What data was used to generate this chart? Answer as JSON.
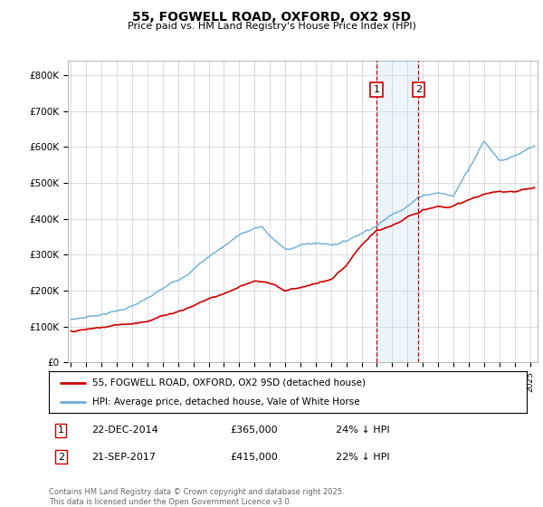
{
  "title": "55, FOGWELL ROAD, OXFORD, OX2 9SD",
  "subtitle": "Price paid vs. HM Land Registry's House Price Index (HPI)",
  "ylabel_ticks": [
    "£0",
    "£100K",
    "£200K",
    "£300K",
    "£400K",
    "£500K",
    "£600K",
    "£700K",
    "£800K"
  ],
  "ytick_values": [
    0,
    100000,
    200000,
    300000,
    400000,
    500000,
    600000,
    700000,
    800000
  ],
  "ylim": [
    0,
    840000
  ],
  "xlim_start": 1994.8,
  "xlim_end": 2025.5,
  "hpi_color": "#6baed6",
  "price_color": "#cc0000",
  "annotation_shade_color": "#c6dbef",
  "annotation_line_color": "#cc0000",
  "transaction1_x": 2014.97,
  "transaction1_date": "22-DEC-2014",
  "transaction1_price": 365000,
  "transaction1_label": "24% ↓ HPI",
  "transaction2_x": 2017.72,
  "transaction2_date": "21-SEP-2017",
  "transaction2_price": 415000,
  "transaction2_label": "22% ↓ HPI",
  "legend_line1": "55, FOGWELL ROAD, OXFORD, OX2 9SD (detached house)",
  "legend_line2": "HPI: Average price, detached house, Vale of White Horse",
  "footer": "Contains HM Land Registry data © Crown copyright and database right 2025.\nThis data is licensed under the Open Government Licence v3.0.",
  "background_color": "#ffffff",
  "grid_color": "#cccccc"
}
